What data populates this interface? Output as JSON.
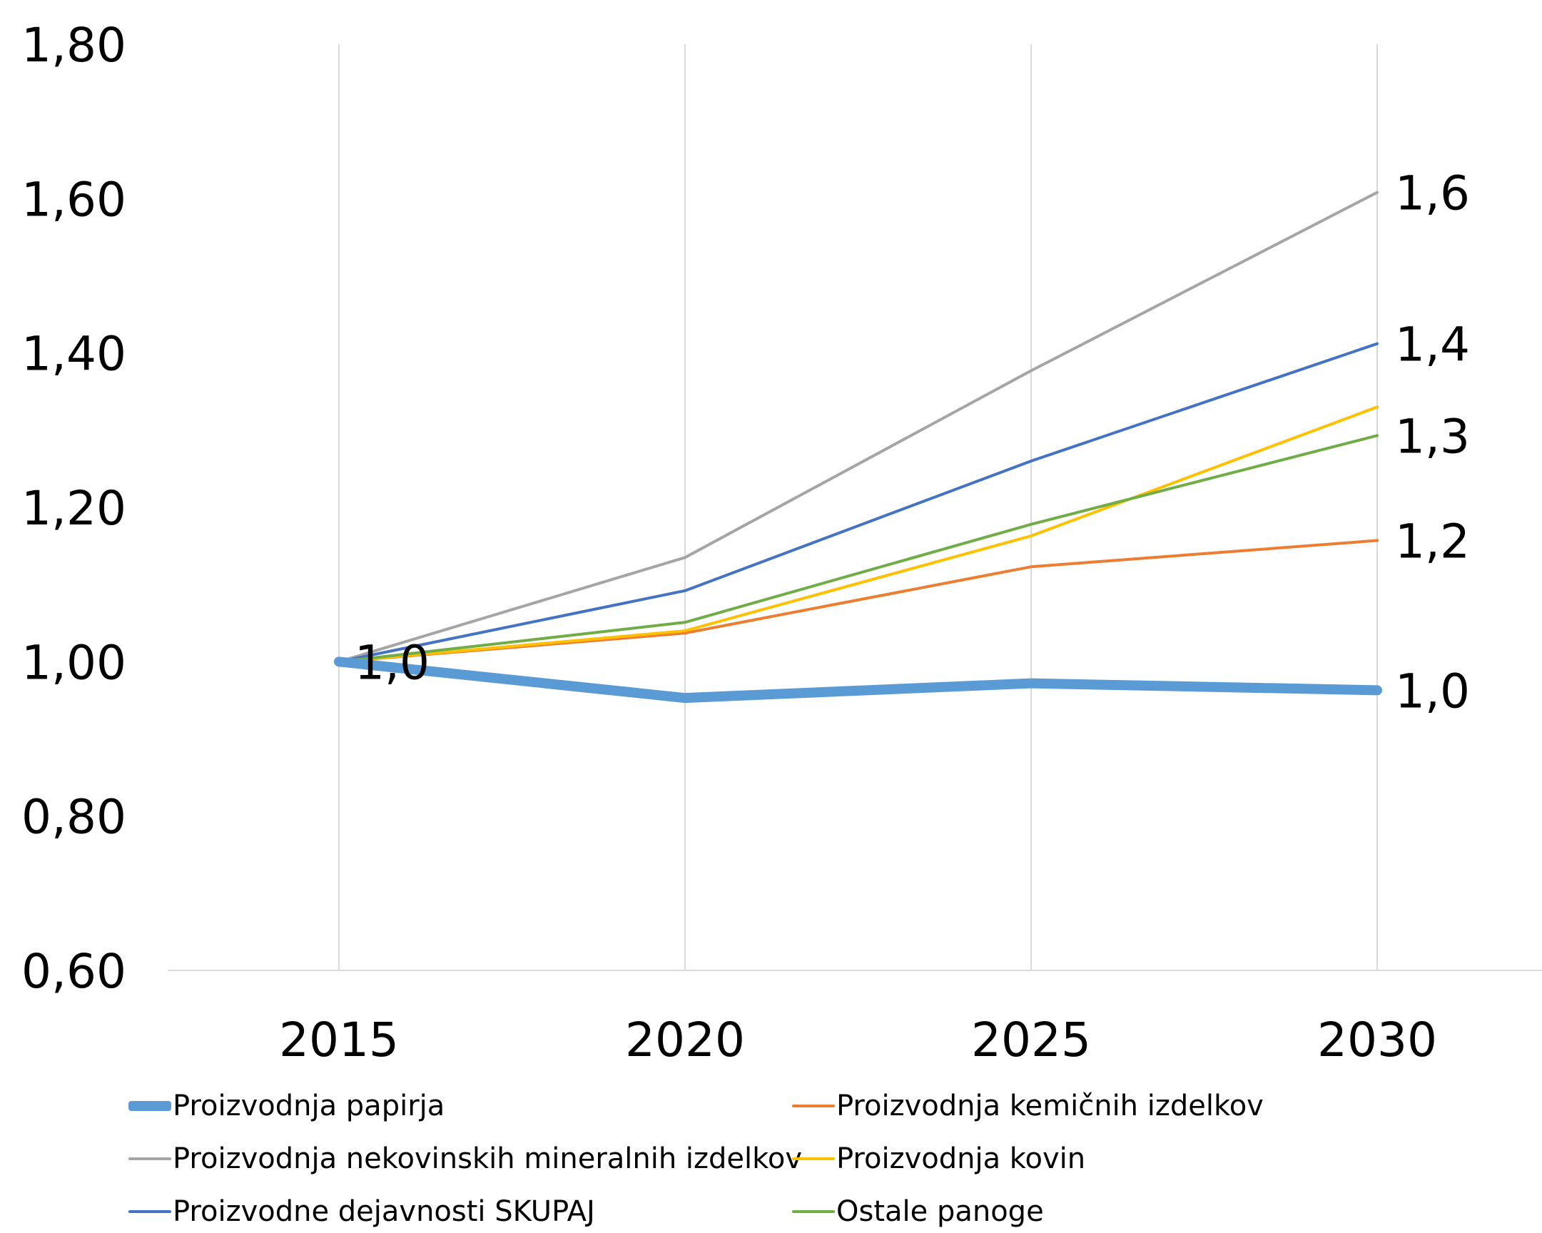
{
  "chart_data": {
    "type": "line",
    "categories": [
      "2015",
      "2020",
      "2025",
      "2030"
    ],
    "ylim": [
      0.6,
      1.8
    ],
    "yticks": [
      "0,60",
      "0,80",
      "1,00",
      "1,20",
      "1,40",
      "1,60",
      "1,80"
    ],
    "grid": "vertical",
    "legend_position": "bottom",
    "series": [
      {
        "name": "Proizvodnja papirja",
        "color": "#5b9bd5",
        "values": [
          1.0,
          0.953,
          0.972,
          0.963
        ],
        "thick": true
      },
      {
        "name": "Proizvodnja kemičnih izdelkov",
        "color": "#ed7d31",
        "values": [
          1.0,
          1.037,
          1.123,
          1.157
        ]
      },
      {
        "name": "Proizvodnja nekovinskih mineralnih izdelkov",
        "color": "#a5a5a5",
        "values": [
          1.0,
          1.135,
          1.377,
          1.608
        ]
      },
      {
        "name": "Proizvodnja kovin",
        "color": "#ffc000",
        "values": [
          1.0,
          1.04,
          1.163,
          1.33
        ]
      },
      {
        "name": "Proizvodne dejavnosti SKUPAJ",
        "color": "#4472c4",
        "values": [
          1.0,
          1.092,
          1.26,
          1.412
        ]
      },
      {
        "name": "Ostale panoge",
        "color": "#70ad47",
        "values": [
          1.0,
          1.051,
          1.178,
          1.293
        ]
      }
    ],
    "data_labels": [
      {
        "text": "1,0",
        "category": "2015",
        "value": 1.0
      },
      {
        "text": "1,6",
        "category": "2030",
        "value": 1.608
      },
      {
        "text": "1,4",
        "category": "2030",
        "value": 1.412
      },
      {
        "text": "1,3",
        "category": "2030",
        "value": 1.293
      },
      {
        "text": "1,2",
        "category": "2030",
        "value": 1.157
      },
      {
        "text": "1,0",
        "category": "2030",
        "value": 0.963
      }
    ]
  }
}
